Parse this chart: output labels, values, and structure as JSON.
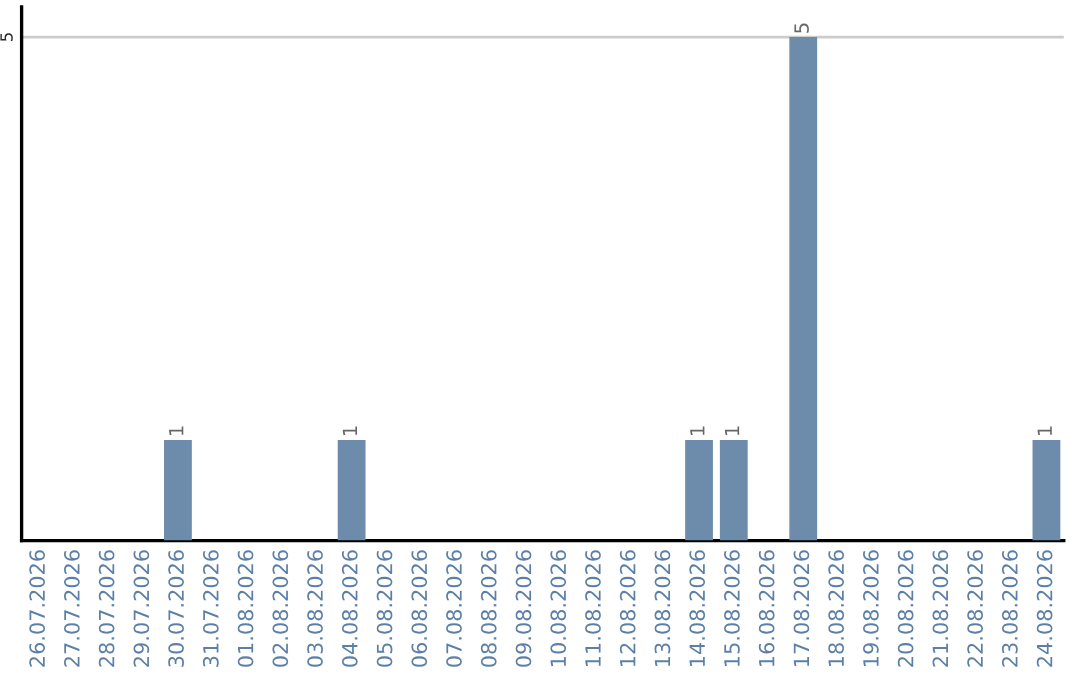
{
  "chart_data": {
    "type": "bar",
    "categories": [
      "26.07.2026",
      "27.07.2026",
      "28.07.2026",
      "29.07.2026",
      "30.07.2026",
      "31.07.2026",
      "01.08.2026",
      "02.08.2026",
      "03.08.2026",
      "04.08.2026",
      "05.08.2026",
      "06.08.2026",
      "07.08.2026",
      "08.08.2026",
      "09.08.2026",
      "10.08.2026",
      "11.08.2026",
      "12.08.2026",
      "13.08.2026",
      "14.08.2026",
      "15.08.2026",
      "16.08.2026",
      "17.08.2026",
      "18.08.2026",
      "19.08.2026",
      "20.08.2026",
      "21.08.2026",
      "22.08.2026",
      "23.08.2026",
      "24.08.2026"
    ],
    "values": [
      0,
      0,
      0,
      0,
      1,
      0,
      0,
      0,
      0,
      1,
      0,
      0,
      0,
      0,
      0,
      0,
      0,
      0,
      0,
      1,
      1,
      0,
      5,
      0,
      0,
      0,
      0,
      0,
      0,
      1
    ],
    "value_labels": [
      null,
      null,
      null,
      null,
      "1",
      null,
      null,
      null,
      null,
      "1",
      null,
      null,
      null,
      null,
      null,
      null,
      null,
      null,
      null,
      "1",
      "1",
      null,
      "5",
      null,
      null,
      null,
      null,
      null,
      null,
      "1"
    ],
    "color": "#6d8cab",
    "ylim": [
      0,
      5.3
    ],
    "yticks": [
      5
    ],
    "grid": "y"
  }
}
